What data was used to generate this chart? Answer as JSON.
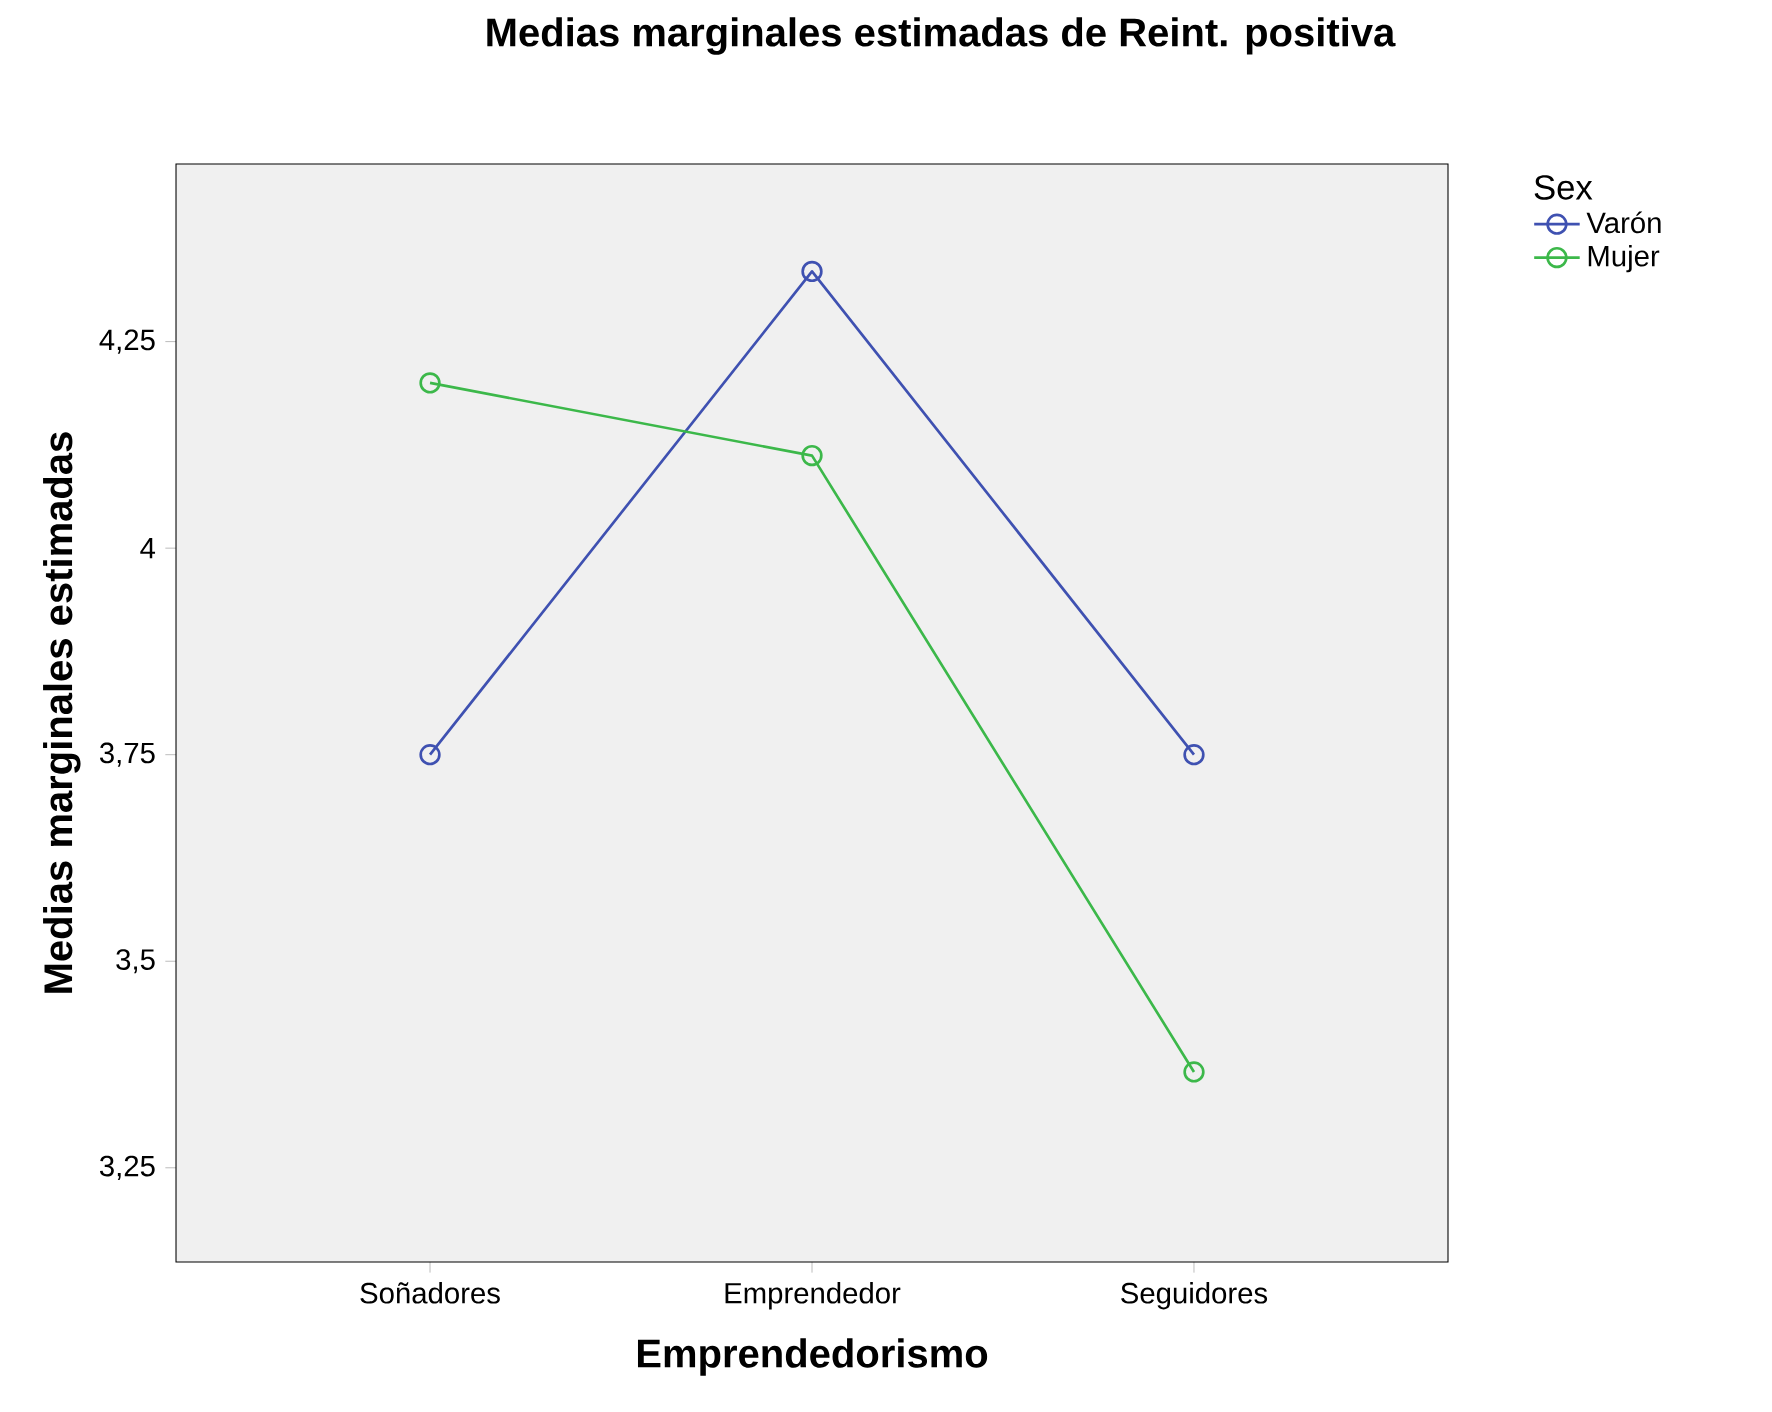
{
  "chart_data": {
    "type": "line",
    "title": "Medias marginales estimadas de Reint. positiva",
    "xlabel": "Emprendedorismo",
    "ylabel": "Medias marginales estimadas",
    "legend_title": "Sex",
    "categories": [
      "Soñadores",
      "Emprendedor",
      "Seguidores"
    ],
    "series": [
      {
        "name": "Varón",
        "color": "#3f51b1",
        "values": [
          3.75,
          4.335,
          3.75
        ]
      },
      {
        "name": "Mujer",
        "color": "#3cb84a",
        "values": [
          4.2,
          4.112,
          3.366
        ]
      }
    ],
    "ylim": [
      3.136,
      4.465
    ],
    "yticks": [
      {
        "value": 3.25,
        "label": "3,25"
      },
      {
        "value": 3.5,
        "label": "3,5"
      },
      {
        "value": 3.75,
        "label": "3,75"
      },
      {
        "value": 4,
        "label": "4"
      },
      {
        "value": 4.25,
        "label": "4,25"
      }
    ],
    "marker": "circle",
    "line_style": "solid",
    "legend": "right",
    "grid": false
  }
}
